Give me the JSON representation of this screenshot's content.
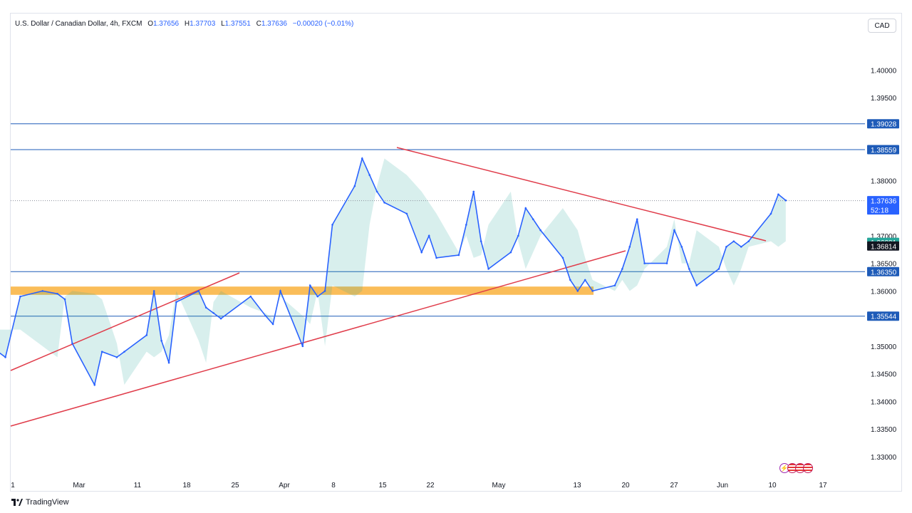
{
  "header": {
    "symbol": "U.S. Dollar / Canadian Dollar, 4h, FXCM",
    "open_label": "O",
    "open": "1.37656",
    "high_label": "H",
    "high": "1.37703",
    "low_label": "L",
    "low": "1.37551",
    "close_label": "C",
    "close": "1.37636",
    "change": "−0.00020 (−0.01%)"
  },
  "currency_button": "CAD",
  "footer": {
    "brand": "TradingView"
  },
  "colors": {
    "candle": "#2962ff",
    "support_resistance": "#1e5bb8",
    "trendline": "#e03c4a",
    "zone": "#f9b23c",
    "bull_fill": "#26a69a",
    "bear_fill": "#ef5350",
    "price_tag": "#2962ff",
    "indicator_green": "#26a69a",
    "indicator_black": "#131722"
  },
  "chart_data": {
    "type": "line",
    "ylim": [
      1.3265,
      1.4065
    ],
    "yticks": [
      "1.40000",
      "1.39500",
      "1.38000",
      "1.37000",
      "1.36500",
      "1.36000",
      "1.35000",
      "1.34500",
      "1.34000",
      "1.33500",
      "1.33000"
    ],
    "xticks": [
      "1",
      "Mar",
      "11",
      "18",
      "25",
      "Apr",
      "8",
      "15",
      "22",
      "May",
      "13",
      "20",
      "27",
      "Jun",
      "10",
      "17"
    ],
    "horizontal_levels": [
      "1.39028",
      "1.38559",
      "1.36350",
      "1.35544"
    ],
    "zone": [
      1.3593,
      1.3608
    ],
    "current_price": "1.37636",
    "countdown": "52:18",
    "indicator_levels": [
      "1.36881",
      "1.36814"
    ],
    "series": [
      {
        "x": [
          "Feb 23",
          "Feb 26",
          "Feb 28",
          "Mar 1",
          "Mar 4",
          "Mar 6",
          "Mar 7",
          "Mar 8",
          "Mar 11",
          "Mar 12",
          "Mar 14",
          "Mar 15",
          "Mar 18",
          "Mar 19",
          "Mar 20",
          "Mar 21",
          "Mar 22",
          "Mar 25",
          "Mar 26",
          "Mar 27",
          "Mar 28",
          "Apr 1",
          "Apr 3",
          "Apr 4",
          "Apr 5",
          "Apr 8",
          "Apr 9",
          "Apr 10",
          "Apr 11",
          "Apr 12",
          "Apr 15",
          "Apr 16",
          "Apr 17",
          "Apr 18",
          "Apr 19",
          "Apr 22",
          "Apr 24",
          "Apr 25",
          "Apr 26",
          "Apr 29",
          "Apr 30",
          "May 1",
          "May 2",
          "May 3",
          "May 6",
          "May 7",
          "May 8",
          "May 9",
          "May 10",
          "May 13",
          "May 14",
          "May 15",
          "May 16",
          "May 17",
          "May 20",
          "May 21",
          "May 22",
          "May 23",
          "May 24",
          "May 27",
          "May 28",
          "May 29",
          "May 30",
          "May 31",
          "Jun 3",
          "Jun 4",
          "Jun 5",
          "Jun 6",
          "Jun 7",
          "Jun 10",
          "Jun 11",
          "Jun 12"
        ],
        "values": [
          1.353,
          1.35,
          1.348,
          1.359,
          1.36,
          1.3595,
          1.3585,
          1.3505,
          1.343,
          1.349,
          1.348,
          1.349,
          1.352,
          1.36,
          1.351,
          1.347,
          1.358,
          1.36,
          1.357,
          1.356,
          1.355,
          1.359,
          1.3555,
          1.354,
          1.36,
          1.35,
          1.361,
          1.359,
          1.36,
          1.372,
          1.379,
          1.384,
          1.381,
          1.378,
          1.376,
          1.374,
          1.367,
          1.37,
          1.366,
          1.3665,
          1.372,
          1.378,
          1.369,
          1.364,
          1.367,
          1.37,
          1.375,
          1.373,
          1.371,
          1.366,
          1.362,
          1.36,
          1.362,
          1.36,
          1.361,
          1.364,
          1.368,
          1.373,
          1.365,
          1.365,
          1.371,
          1.368,
          1.364,
          1.361,
          1.364,
          1.368,
          1.369,
          1.368,
          1.369,
          1.374,
          1.3775,
          1.3764
        ]
      }
    ]
  }
}
